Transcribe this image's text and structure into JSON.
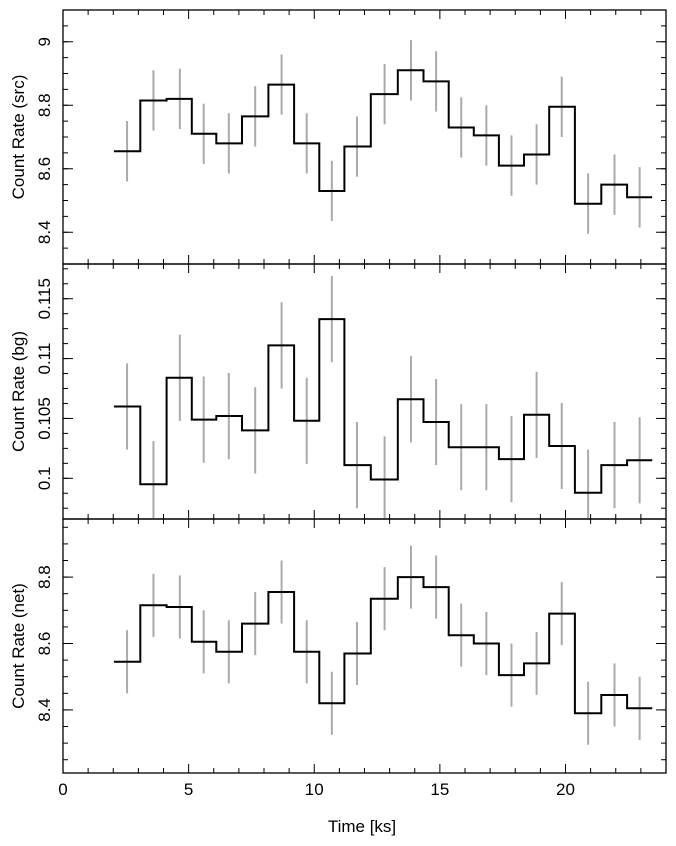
{
  "chart_data": [
    {
      "type": "line",
      "step": true,
      "ylabel": "Count Rate (src)",
      "ylim": [
        8.3,
        9.1
      ],
      "yticks": [
        8.4,
        8.6,
        8.8,
        9
      ],
      "ytick_labels": [
        "8.4",
        "8.6",
        "8.8",
        "9"
      ],
      "x": [
        2.55,
        3.6,
        4.65,
        5.6,
        6.6,
        7.65,
        8.7,
        9.7,
        10.7,
        11.7,
        12.8,
        13.85,
        14.85,
        15.85,
        16.85,
        17.85,
        18.85,
        19.85,
        20.9,
        21.95,
        22.95
      ],
      "y": [
        8.655,
        8.815,
        8.82,
        8.71,
        8.68,
        8.765,
        8.865,
        8.68,
        8.53,
        8.67,
        8.835,
        8.91,
        8.875,
        8.73,
        8.705,
        8.61,
        8.645,
        8.795,
        8.49,
        8.55,
        8.51
      ],
      "error": [
        0.095,
        0.095,
        0.095,
        0.095,
        0.095,
        0.095,
        0.095,
        0.095,
        0.095,
        0.095,
        0.095,
        0.095,
        0.095,
        0.095,
        0.095,
        0.095,
        0.095,
        0.095,
        0.095,
        0.095,
        0.095
      ]
    },
    {
      "type": "line",
      "step": true,
      "ylabel": "Count Rate (bg)",
      "ylim": [
        0.0966,
        0.1179
      ],
      "yticks": [
        0.1,
        0.105,
        0.11,
        0.115
      ],
      "ytick_labels": [
        "0.1",
        "0.105",
        "0.11",
        "0.115"
      ],
      "x": [
        2.55,
        3.6,
        4.65,
        5.6,
        6.6,
        7.65,
        8.7,
        9.7,
        10.7,
        11.7,
        12.8,
        13.85,
        14.85,
        15.85,
        16.85,
        17.85,
        18.85,
        19.85,
        20.9,
        21.95,
        22.95
      ],
      "y": [
        0.106,
        0.0995,
        0.1084,
        0.1049,
        0.1052,
        0.104,
        0.1111,
        0.1048,
        0.1133,
        0.1011,
        0.0999,
        0.1066,
        0.1047,
        0.1026,
        0.1026,
        0.1016,
        0.1053,
        0.1027,
        0.0988,
        0.1011,
        0.1015
      ],
      "error": [
        0.0036,
        0.0036,
        0.0036,
        0.0036,
        0.0036,
        0.0036,
        0.0036,
        0.0036,
        0.0036,
        0.0036,
        0.0036,
        0.0036,
        0.0036,
        0.0036,
        0.0036,
        0.0036,
        0.0036,
        0.0036,
        0.0036,
        0.0036,
        0.0036
      ]
    },
    {
      "type": "line",
      "step": true,
      "ylabel": "Count Rate (net)",
      "xlabel": "Time [ks]",
      "xlim": [
        0,
        24
      ],
      "xticks": [
        0,
        5,
        10,
        15,
        20
      ],
      "xtick_labels": [
        "0",
        "5",
        "10",
        "15",
        "20"
      ],
      "ylim": [
        8.21,
        8.975
      ],
      "yticks": [
        8.4,
        8.6,
        8.8
      ],
      "ytick_labels": [
        "8.4",
        "8.6",
        "8.8"
      ],
      "x": [
        2.55,
        3.6,
        4.65,
        5.6,
        6.6,
        7.65,
        8.7,
        9.7,
        10.7,
        11.7,
        12.8,
        13.85,
        14.85,
        15.85,
        16.85,
        17.85,
        18.85,
        19.85,
        20.9,
        21.95,
        22.95
      ],
      "y": [
        8.545,
        8.715,
        8.71,
        8.605,
        8.575,
        8.66,
        8.755,
        8.575,
        8.42,
        8.57,
        8.735,
        8.8,
        8.77,
        8.625,
        8.6,
        8.505,
        8.54,
        8.69,
        8.39,
        8.445,
        8.405
      ],
      "error": [
        0.095,
        0.095,
        0.095,
        0.095,
        0.095,
        0.095,
        0.095,
        0.095,
        0.095,
        0.095,
        0.095,
        0.095,
        0.095,
        0.095,
        0.095,
        0.095,
        0.095,
        0.095,
        0.095,
        0.095,
        0.095
      ]
    }
  ],
  "colors": {
    "step_line": "#000000",
    "error_bar": "#aaaaaa",
    "frame": "#000000"
  }
}
